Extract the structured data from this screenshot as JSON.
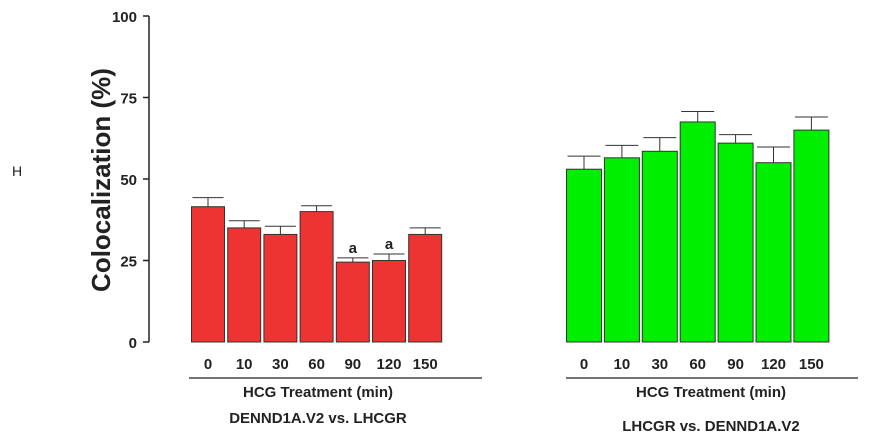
{
  "panel_letter": "H",
  "chart_data": {
    "type": "bar",
    "ylabel": "Colocalization (%)",
    "ylim": [
      0,
      100
    ],
    "yticks": [
      0,
      25,
      50,
      75,
      100
    ],
    "grid": false,
    "groups": [
      {
        "id": "group-1",
        "xlabel": "HCG Treatment (min)",
        "caption": "DENND1A.V2 vs. LHCGR",
        "color": "#ee3333",
        "categories": [
          "0",
          "10",
          "30",
          "60",
          "90",
          "120",
          "150"
        ],
        "values": [
          41.5,
          35,
          33,
          40,
          24.5,
          25,
          33
        ],
        "errors": [
          2.8,
          2.2,
          2.5,
          1.8,
          1.3,
          2.0,
          2.0
        ],
        "annotations": [
          "",
          "",
          "",
          "",
          "a",
          "a",
          ""
        ]
      },
      {
        "id": "group-2",
        "xlabel": "HCG Treatment (min)",
        "caption": "LHCGR vs. DENND1A.V2",
        "color": "#00ee00",
        "categories": [
          "0",
          "10",
          "30",
          "60",
          "90",
          "120",
          "150"
        ],
        "values": [
          53,
          56.5,
          58.5,
          67.5,
          61,
          55,
          65
        ],
        "errors": [
          4.0,
          3.8,
          4.2,
          3.2,
          2.6,
          4.8,
          4.0
        ],
        "annotations": [
          "",
          "",
          "",
          "",
          "",
          "",
          ""
        ]
      }
    ]
  }
}
